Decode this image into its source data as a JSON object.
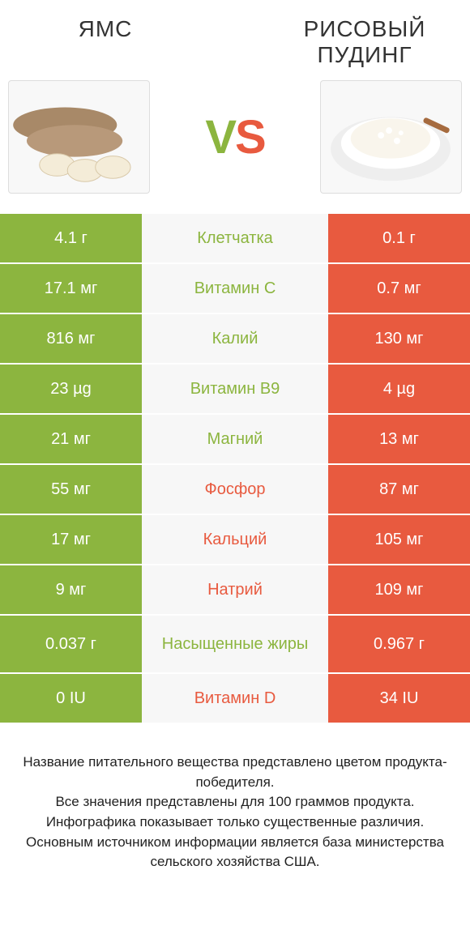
{
  "colors": {
    "left": "#8cb53f",
    "right": "#e85a3f",
    "mid_bg": "#f7f7f7",
    "text": "#333333"
  },
  "header": {
    "left_title": "ЯМС",
    "right_title": "РИСОВЫЙ ПУДИНГ",
    "vs_v": "V",
    "vs_s": "S"
  },
  "rows": [
    {
      "left": "4.1 г",
      "mid": "Клетчатка",
      "right": "0.1 г",
      "winner": "left",
      "tall": false
    },
    {
      "left": "17.1 мг",
      "mid": "Витамин C",
      "right": "0.7 мг",
      "winner": "left",
      "tall": false
    },
    {
      "left": "816 мг",
      "mid": "Калий",
      "right": "130 мг",
      "winner": "left",
      "tall": false
    },
    {
      "left": "23 µg",
      "mid": "Витамин B9",
      "right": "4 µg",
      "winner": "left",
      "tall": false
    },
    {
      "left": "21 мг",
      "mid": "Магний",
      "right": "13 мг",
      "winner": "left",
      "tall": false
    },
    {
      "left": "55 мг",
      "mid": "Фосфор",
      "right": "87 мг",
      "winner": "right",
      "tall": false
    },
    {
      "left": "17 мг",
      "mid": "Кальций",
      "right": "105 мг",
      "winner": "right",
      "tall": false
    },
    {
      "left": "9 мг",
      "mid": "Натрий",
      "right": "109 мг",
      "winner": "right",
      "tall": false
    },
    {
      "left": "0.037 г",
      "mid": "Насыщенные жиры",
      "right": "0.967 г",
      "winner": "left",
      "tall": true
    },
    {
      "left": "0 IU",
      "mid": "Витамин D",
      "right": "34 IU",
      "winner": "right",
      "tall": false
    }
  ],
  "footer": {
    "line1": "Название питательного вещества представлено цветом продукта-победителя.",
    "line2": "Все значения представлены для 100 граммов продукта.",
    "line3": "Инфографика показывает только существенные различия.",
    "line4": "Основным источником информации является база министерства сельского хозяйства США."
  }
}
